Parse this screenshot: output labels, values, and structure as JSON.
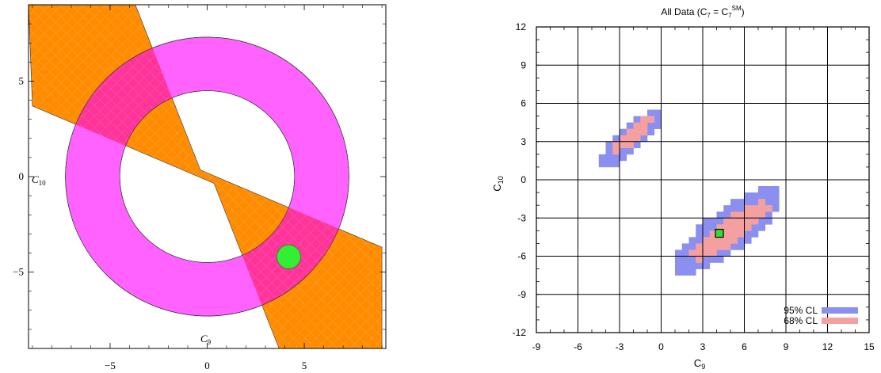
{
  "chart_data": [
    {
      "type": "area",
      "xlabel": "C",
      "xlabel_sub": "9",
      "ylabel": "C",
      "ylabel_sub": "10",
      "xlim": [
        -9.2,
        9.2
      ],
      "ylim": [
        -9,
        9
      ],
      "xticks": [
        -5,
        0,
        5
      ],
      "xtick_labels": [
        "−5",
        "0",
        "5"
      ],
      "yticks": [
        -5,
        0,
        5
      ],
      "ytick_labels": [
        "−5",
        "0",
        "5"
      ],
      "grid": false,
      "colors": {
        "band": "#ff8c00",
        "ring": "#ff55ff",
        "overlap": "#ff3399",
        "best_fit": "#33ee33"
      },
      "regions": [
        {
          "name": "",
          "polygon": [
            [
              -9.2,
              9
            ],
            [
              -3.7,
              9
            ],
            [
              -0.35,
              0.35
            ],
            [
              9,
              -3.7
            ],
            [
              9,
              -9
            ],
            [
              3.7,
              -9
            ],
            [
              0.35,
              -0.35
            ],
            [
              -9,
              3.7
            ]
          ]
        },
        {
          "name": "",
          "shape": "annulus",
          "center": [
            0,
            0
          ],
          "inner_radius": 4.5,
          "outer_radius": 7.3
        }
      ],
      "points": [
        {
          "x": 4.2,
          "y": -4.2
        }
      ]
    },
    {
      "type": "heatmap",
      "title": "All Data (C",
      "title_sub1": "7",
      "title_mid": " = C",
      "title_sub2": "7",
      "title_sup": "SM",
      "title_end": ")",
      "xlabel": "C",
      "xlabel_sub": "9",
      "ylabel": "C",
      "ylabel_sub": "10",
      "xlim": [
        -9,
        15
      ],
      "ylim": [
        -12,
        12
      ],
      "xticks": [
        -9,
        -6,
        -3,
        0,
        3,
        6,
        9,
        12,
        15
      ],
      "xtick_labels": [
        "-9",
        "-6",
        "-3",
        "0",
        "3",
        "6",
        "9",
        "12",
        "15"
      ],
      "yticks": [
        -12,
        -9,
        -6,
        -3,
        0,
        3,
        6,
        9,
        12
      ],
      "ytick_labels": [
        "-12",
        "-9",
        "-6",
        "-3",
        "0",
        "3",
        "6",
        "9",
        "12"
      ],
      "grid": true,
      "legend": "bottom-right",
      "series": [
        {
          "name": "95% CL",
          "color": "#8a8ff0",
          "regions": [
            {
              "center": [
                -2.2,
                3.2
              ],
              "half_major": 3.3,
              "half_minor": 0.95,
              "angle_deg": 45
            },
            {
              "center": [
                4.8,
                -4.0
              ],
              "half_major": 4.9,
              "half_minor": 1.6,
              "angle_deg": 40
            }
          ]
        },
        {
          "name": "68% CL",
          "color": "#f5a0a0",
          "regions": [
            {
              "center": [
                -2.0,
                3.6
              ],
              "half_major": 1.9,
              "half_minor": 0.5,
              "angle_deg": 45
            },
            {
              "center": [
                5.0,
                -4.0
              ],
              "half_major": 3.5,
              "half_minor": 0.9,
              "angle_deg": 38
            }
          ]
        }
      ],
      "points": [
        {
          "x": 4.2,
          "y": -4.2,
          "color": "#33dd33"
        }
      ]
    }
  ]
}
